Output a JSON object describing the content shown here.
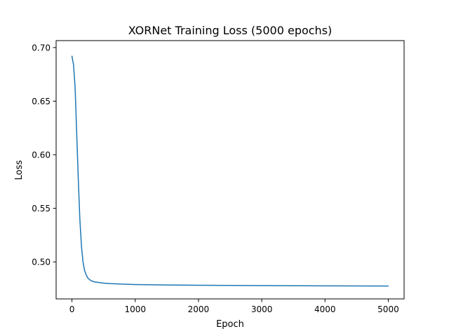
{
  "chart_data": {
    "type": "line",
    "title": "XORNet Training Loss (5000 epochs)",
    "xlabel": "Epoch",
    "ylabel": "Loss",
    "xlim": [
      -250,
      5250
    ],
    "ylim": [
      0.4655,
      0.7065
    ],
    "xticks": [
      0,
      1000,
      2000,
      3000,
      4000,
      5000
    ],
    "xtick_labels": [
      "0",
      "1000",
      "2000",
      "3000",
      "4000",
      "5000"
    ],
    "yticks": [
      0.5,
      0.55,
      0.6,
      0.65,
      0.7
    ],
    "ytick_labels": [
      "0.50",
      "0.55",
      "0.60",
      "0.65",
      "0.70"
    ],
    "grid": false,
    "legend": "none",
    "series": [
      {
        "color": "#1f77b4",
        "x": [
          0,
          25,
          50,
          75,
          100,
          125,
          150,
          175,
          200,
          225,
          250,
          300,
          350,
          400,
          500,
          600,
          800,
          1000,
          1500,
          2000,
          3000,
          4000,
          5000
        ],
        "y": [
          0.692,
          0.684,
          0.663,
          0.62,
          0.578,
          0.54,
          0.515,
          0.5,
          0.492,
          0.488,
          0.485,
          0.4825,
          0.4815,
          0.481,
          0.4802,
          0.4798,
          0.4793,
          0.4789,
          0.4785,
          0.4782,
          0.4779,
          0.4777,
          0.4775
        ]
      }
    ]
  }
}
